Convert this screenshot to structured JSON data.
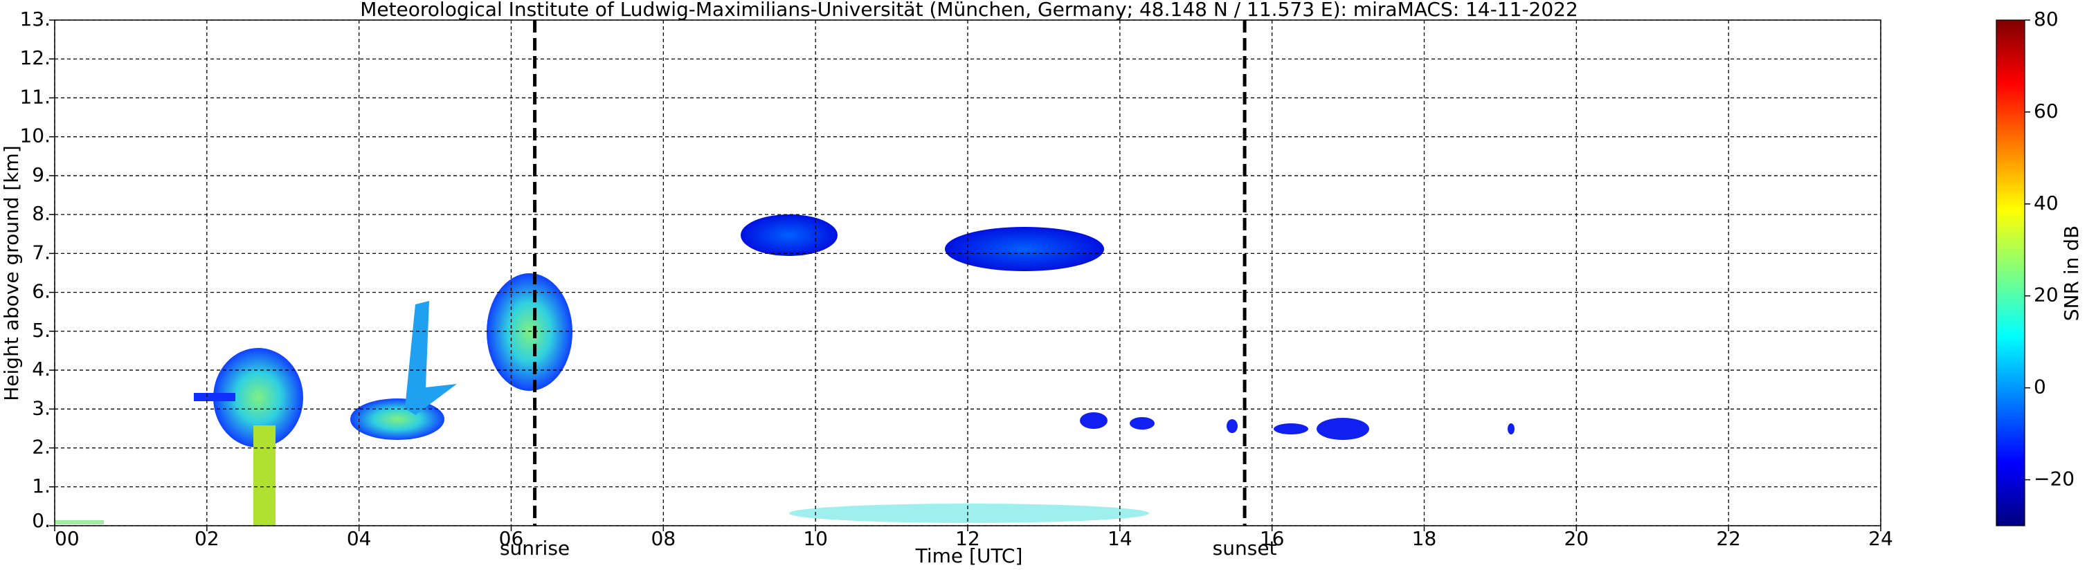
{
  "chart_data": {
    "type": "heatmap",
    "title": "Meteorological Institute of Ludwig-Maximilians-Universität (München, Germany; 48.148 N / 11.573 E):    miraMACS: 14-11-2022",
    "xlabel": "Time [UTC]",
    "ylabel": "Height above ground [km]",
    "xlim": [
      0,
      24
    ],
    "xticks": [
      {
        "value": 0,
        "label": "00"
      },
      {
        "value": 2,
        "label": "02"
      },
      {
        "value": 4,
        "label": "04"
      },
      {
        "value": 6,
        "label": "06"
      },
      {
        "value": 8,
        "label": "08"
      },
      {
        "value": 10,
        "label": "10"
      },
      {
        "value": 12,
        "label": "12"
      },
      {
        "value": 14,
        "label": "14"
      },
      {
        "value": 16,
        "label": "16"
      },
      {
        "value": 18,
        "label": "18"
      },
      {
        "value": 20,
        "label": "20"
      },
      {
        "value": 22,
        "label": "22"
      },
      {
        "value": 24,
        "label": "24"
      }
    ],
    "ylim": [
      0,
      13
    ],
    "yticks": [
      {
        "value": 0,
        "label": "0."
      },
      {
        "value": 1,
        "label": "1."
      },
      {
        "value": 2,
        "label": "2."
      },
      {
        "value": 3,
        "label": "3."
      },
      {
        "value": 4,
        "label": "4."
      },
      {
        "value": 5,
        "label": "5."
      },
      {
        "value": 6,
        "label": "6."
      },
      {
        "value": 7,
        "label": "7."
      },
      {
        "value": 8,
        "label": "8."
      },
      {
        "value": 9,
        "label": "9."
      },
      {
        "value": 10,
        "label": "10."
      },
      {
        "value": 11,
        "label": "11."
      },
      {
        "value": 12,
        "label": "12."
      },
      {
        "value": 13,
        "label": "13."
      }
    ],
    "grid": true,
    "colorbar": {
      "label": "SNR in dB",
      "colormap": "jet",
      "lim": [
        -30,
        80
      ],
      "ticks": [
        {
          "value": -20,
          "label": "−20"
        },
        0,
        20,
        40,
        60,
        80
      ]
    },
    "annotations": [
      {
        "text": "sunrise",
        "x": 6.31
      },
      {
        "text": "sunset",
        "x": 15.64
      }
    ]
  }
}
